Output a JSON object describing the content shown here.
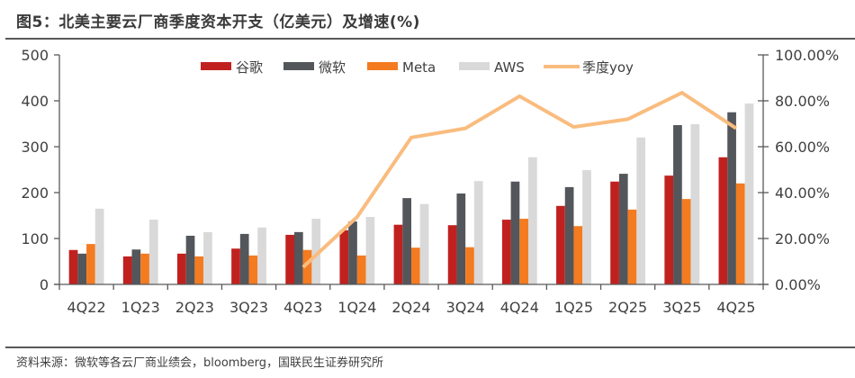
{
  "title": "图5：北美主要云厂商季度资本开支（亿美元）及增速(%)",
  "footer": "资料来源：微软等各云厂商业绩会，bloomberg，国联民生证券研究所",
  "chart_data": {
    "type": "bar",
    "title": "图5：北美主要云厂商季度资本开支（亿美元）及增速(%)",
    "xlabel": "",
    "ylabel": "",
    "categories": [
      "4Q22",
      "1Q23",
      "2Q23",
      "3Q23",
      "4Q23",
      "1Q24",
      "2Q24",
      "3Q24",
      "4Q24",
      "1Q25",
      "2Q25",
      "3Q25",
      "4Q25"
    ],
    "series": [
      {
        "name": "谷歌",
        "type": "bar",
        "axis": "left",
        "color": "#C0211F",
        "values": [
          75,
          61,
          67,
          78,
          108,
          118,
          130,
          129,
          141,
          171,
          224,
          237,
          277
        ]
      },
      {
        "name": "微软",
        "type": "bar",
        "axis": "left",
        "color": "#53565A",
        "values": [
          67,
          76,
          106,
          110,
          114,
          137,
          188,
          198,
          224,
          212,
          241,
          347,
          375
        ]
      },
      {
        "name": "Meta",
        "type": "bar",
        "axis": "left",
        "color": "#F47B20",
        "values": [
          88,
          67,
          61,
          63,
          75,
          63,
          80,
          81,
          143,
          127,
          163,
          186,
          220
        ]
      },
      {
        "name": "AWS",
        "type": "bar",
        "axis": "left",
        "color": "#D9D9D9",
        "values": [
          165,
          141,
          114,
          124,
          143,
          147,
          175,
          225,
          277,
          249,
          320,
          349,
          394
        ]
      },
      {
        "name": "季度yoy",
        "type": "line",
        "axis": "right",
        "color": "#F9BC7E",
        "values": [
          null,
          null,
          null,
          null,
          7.5,
          29.4,
          64.0,
          68.0,
          82.0,
          68.6,
          72.0,
          83.5,
          68.0
        ]
      }
    ],
    "ylim": [
      0,
      500
    ],
    "yticks": [
      0,
      100,
      200,
      300,
      400,
      500
    ],
    "ytick_labels": [
      "0",
      "100",
      "200",
      "300",
      "400",
      "500"
    ],
    "y2lim": [
      0,
      100
    ],
    "y2ticks": [
      0,
      20,
      40,
      60,
      80,
      100
    ],
    "y2tick_labels": [
      "0.00%",
      "20.00%",
      "40.00%",
      "60.00%",
      "80.00%",
      "100.00%"
    ],
    "grid": false,
    "legend_position": "top"
  }
}
